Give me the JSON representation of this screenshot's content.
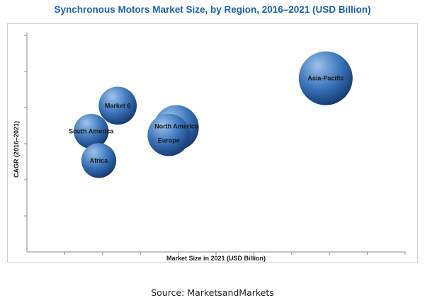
{
  "chart_data": {
    "type": "bubble",
    "title": "Synchronous Motors Market Size, by Region, 2016–2021 (USD Billion)",
    "xlabel": "Market Size in 2021 (USD Billion)",
    "ylabel": "CAGR (2016–2021)",
    "xlim": [
      0,
      10
    ],
    "ylim": [
      0,
      6
    ],
    "ticks_labeled": false,
    "grid": false,
    "legend": "none",
    "series": [
      {
        "name": "Asia-Pacific",
        "x": 7.9,
        "y": 4.75,
        "size": 1.0
      },
      {
        "name": "North America",
        "x": 3.95,
        "y": 3.4,
        "size": 0.7
      },
      {
        "name": "Europe",
        "x": 3.75,
        "y": 3.2,
        "size": 0.62
      },
      {
        "name": "Market 6",
        "x": 2.4,
        "y": 4.0,
        "size": 0.5
      },
      {
        "name": "South America",
        "x": 1.7,
        "y": 3.3,
        "size": 0.42
      },
      {
        "name": "Africa",
        "x": 1.9,
        "y": 2.5,
        "size": 0.42
      }
    ]
  },
  "source": "Source: MarketsandMarkets",
  "colors": {
    "title": "#1f5fa8",
    "bubble_light": "#9fc3ea",
    "bubble_mid": "#3d77bd",
    "bubble_dark": "#143b73"
  }
}
